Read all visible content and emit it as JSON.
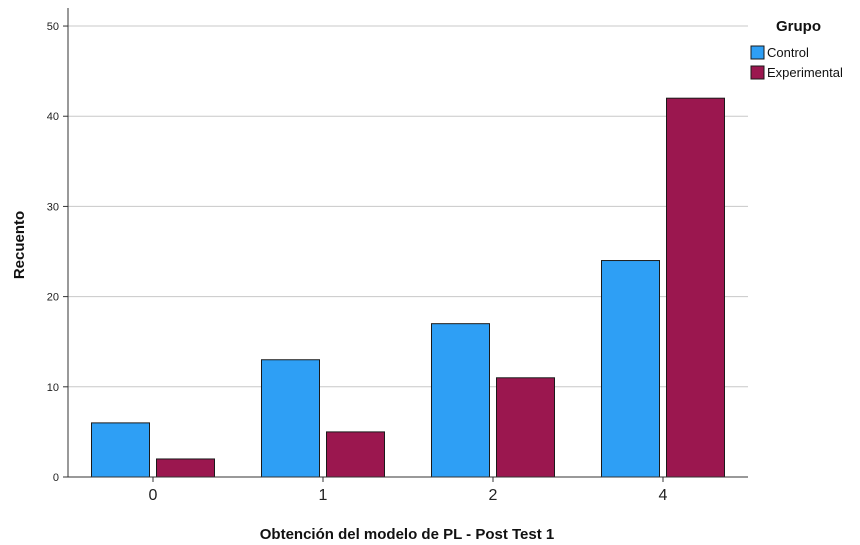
{
  "chart_data": {
    "type": "bar",
    "title": "",
    "xlabel": "Obtención del modelo de PL - Post Test 1",
    "ylabel": "Recuento",
    "categories": [
      "0",
      "1",
      "2",
      "4"
    ],
    "series": [
      {
        "name": "Control",
        "color": "#2E9FF5",
        "values": [
          6,
          13,
          17,
          24
        ]
      },
      {
        "name": "Experimental",
        "color": "#9B174F",
        "values": [
          2,
          5,
          11,
          42
        ]
      }
    ],
    "ylim": [
      0,
      52
    ],
    "yticks": [
      0,
      10,
      20,
      30,
      40,
      50
    ],
    "grid": true,
    "legend": {
      "title": "Grupo",
      "placement": "top-right"
    }
  }
}
